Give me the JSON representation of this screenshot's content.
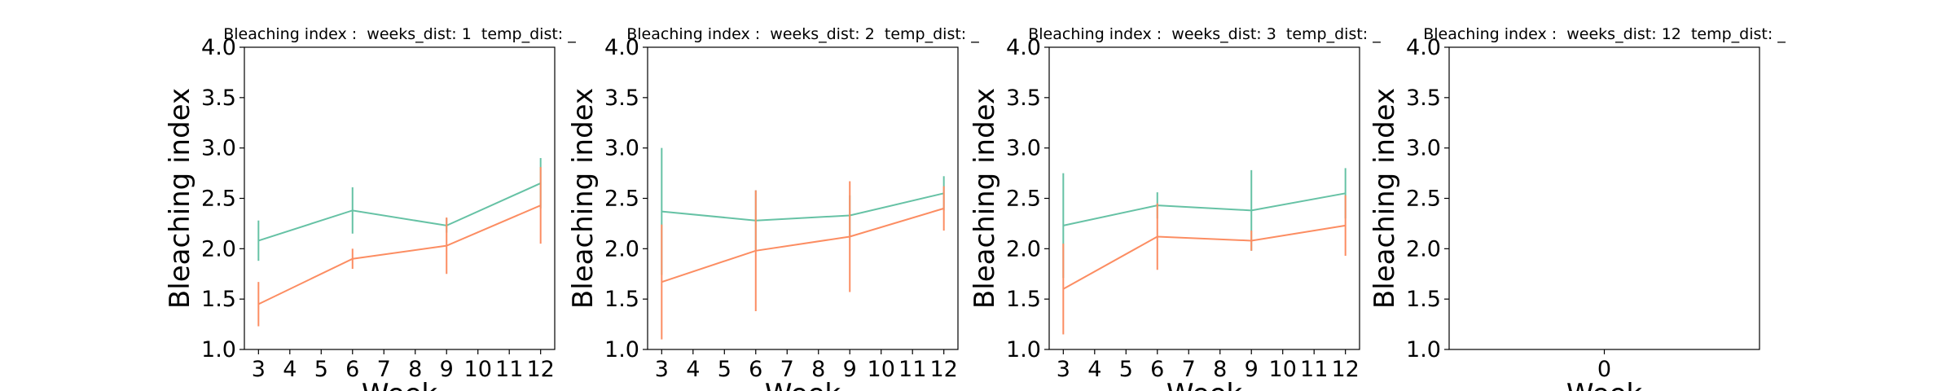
{
  "chart_data": [
    {
      "type": "line",
      "title": "Bleaching index :  weeks_dist: 1  temp_dist: _",
      "xlabel": "Week",
      "ylabel": "Bleaching index",
      "x": [
        3,
        6,
        9,
        12
      ],
      "xlim": [
        2.55,
        12.45
      ],
      "xticks": [
        3,
        4,
        5,
        6,
        7,
        8,
        9,
        10,
        11,
        12
      ],
      "ylim": [
        1,
        4
      ],
      "yticks": [
        {
          "value": 1,
          "label": "1.0"
        },
        1.5,
        {
          "value": 2,
          "label": "2.0"
        },
        2.5,
        {
          "value": 3,
          "label": "3.0"
        },
        3.5,
        {
          "value": 4,
          "label": "4.0"
        }
      ],
      "series": [
        {
          "color": "#66c2a5",
          "values": [
            2.08,
            2.38,
            2.23,
            2.65
          ],
          "errors": [
            0.2,
            0.23,
            0.07,
            0.25
          ]
        },
        {
          "color": "#fc8d62",
          "values": [
            1.45,
            1.9,
            2.03,
            2.43
          ],
          "errors": [
            0.22,
            0.1,
            0.28,
            0.38
          ]
        }
      ]
    },
    {
      "type": "line",
      "title": "Bleaching index :  weeks_dist: 2  temp_dist: _",
      "xlabel": "Week",
      "ylabel": "Bleaching index",
      "x": [
        3,
        6,
        9,
        12
      ],
      "xlim": [
        2.55,
        12.45
      ],
      "xticks": [
        3,
        4,
        5,
        6,
        7,
        8,
        9,
        10,
        11,
        12
      ],
      "ylim": [
        1,
        4
      ],
      "yticks": [
        {
          "value": 1,
          "label": "1.0"
        },
        1.5,
        {
          "value": 2,
          "label": "2.0"
        },
        2.5,
        {
          "value": 3,
          "label": "3.0"
        },
        3.5,
        {
          "value": 4,
          "label": "4.0"
        }
      ],
      "series": [
        {
          "color": "#66c2a5",
          "values": [
            2.37,
            2.28,
            2.33,
            2.55
          ],
          "errors": [
            0.63,
            0.3,
            0.2,
            0.17
          ]
        },
        {
          "color": "#fc8d62",
          "values": [
            1.67,
            1.98,
            2.12,
            2.4
          ],
          "errors": [
            0.57,
            0.6,
            0.55,
            0.22
          ]
        }
      ]
    },
    {
      "type": "line",
      "title": "Bleaching index :  weeks_dist: 3  temp_dist: _",
      "xlabel": "Week",
      "ylabel": "Bleaching index",
      "x": [
        3,
        6,
        9,
        12
      ],
      "xlim": [
        2.55,
        12.45
      ],
      "xticks": [
        3,
        4,
        5,
        6,
        7,
        8,
        9,
        10,
        11,
        12
      ],
      "ylim": [
        1,
        4
      ],
      "yticks": [
        {
          "value": 1,
          "label": "1.0"
        },
        1.5,
        {
          "value": 2,
          "label": "2.0"
        },
        2.5,
        {
          "value": 3,
          "label": "3.0"
        },
        3.5,
        {
          "value": 4,
          "label": "4.0"
        }
      ],
      "series": [
        {
          "color": "#66c2a5",
          "values": [
            2.23,
            2.43,
            2.38,
            2.55
          ],
          "errors": [
            0.52,
            0.13,
            0.4,
            0.25
          ]
        },
        {
          "color": "#fc8d62",
          "values": [
            1.6,
            2.12,
            2.08,
            2.23
          ],
          "errors": [
            0.45,
            0.33,
            0.1,
            0.3
          ]
        }
      ]
    },
    {
      "type": "line",
      "title": "Bleaching index :  weeks_dist: 12  temp_dist: _",
      "xlabel": "Week",
      "ylabel": "Bleaching index",
      "x": [],
      "xlim": [
        -0.5,
        0.5
      ],
      "xticks": [
        0
      ],
      "ylim": [
        1,
        4
      ],
      "yticks": [
        {
          "value": 1,
          "label": "1.0"
        },
        1.5,
        {
          "value": 2,
          "label": "2.0"
        },
        2.5,
        {
          "value": 3,
          "label": "3.0"
        },
        3.5,
        {
          "value": 4,
          "label": "4.0"
        }
      ],
      "series": []
    }
  ]
}
